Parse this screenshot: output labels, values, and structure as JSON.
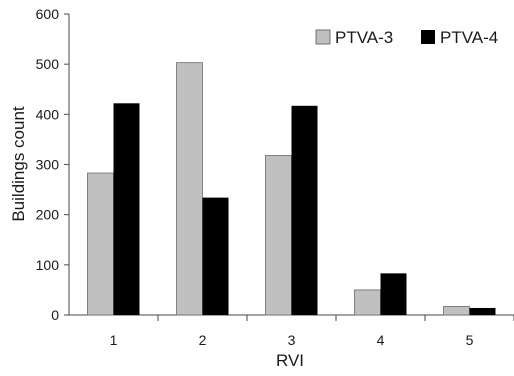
{
  "chart_data": {
    "type": "bar",
    "title": "",
    "xlabel": "RVI",
    "ylabel": "Buildings count",
    "categories": [
      "1",
      "2",
      "3",
      "4",
      "5"
    ],
    "series": [
      {
        "name": "PTVA-3",
        "values": [
          283,
          503,
          318,
          50,
          17
        ],
        "color": "#c0c0c0"
      },
      {
        "name": "PTVA-4",
        "values": [
          422,
          234,
          417,
          83,
          14
        ],
        "color": "#000000"
      }
    ],
    "ylim": [
      0,
      600
    ],
    "yticks": [
      0,
      100,
      200,
      300,
      400,
      500,
      600
    ],
    "grid": false,
    "legend_position": "top-right"
  }
}
